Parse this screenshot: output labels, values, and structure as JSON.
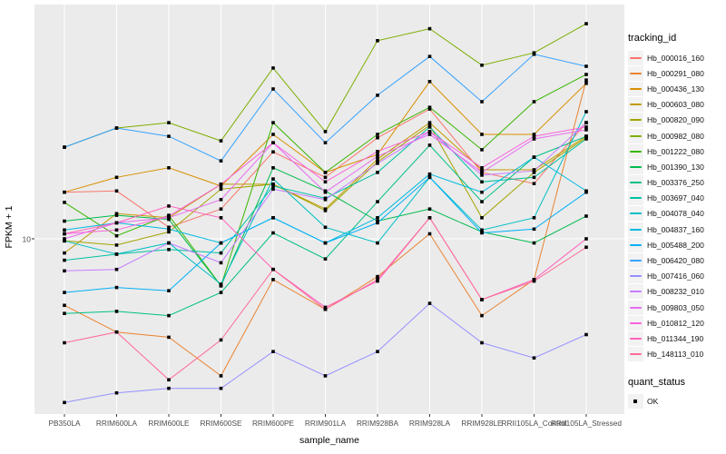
{
  "chart_data": {
    "type": "line",
    "title": "",
    "xlabel": "sample_name",
    "ylabel": "FPKM + 1",
    "y_scale": "log10",
    "y_ticks": [
      10
    ],
    "grid": true,
    "panel_bg": "#EBEBEB",
    "gridline_color": "#FFFFFF",
    "point_color": "#000000",
    "axis_text_color": "#4D4D4D",
    "legend_title": "tracking_id",
    "legend_position": "right",
    "point_legend": {
      "title": "quant_status",
      "label": "OK"
    },
    "categories": [
      "PB350LA",
      "RRIM600LA",
      "RRIM600LE",
      "RRIM600SE",
      "RRIM600PE",
      "RRIM901LA",
      "RRIM928BA",
      "RRIM928LA",
      "RRIM928LE",
      "RRII105LA_Control",
      "RRII105LA_Stressed"
    ],
    "series": [
      {
        "name": "Hb_000016_160",
        "color": "#F8766D",
        "values": [
          15.8,
          16.0,
          11.2,
          13.4,
          23.5,
          18.3,
          27.0,
          35.8,
          19.2,
          17.2,
          31.3
        ]
      },
      {
        "name": "Hb_000291_080",
        "color": "#EA8331",
        "values": [
          5.2,
          4.0,
          3.8,
          2.6,
          6.7,
          5.0,
          6.9,
          10.5,
          4.7,
          6.7,
          47.6
        ]
      },
      {
        "name": "Hb_000436_130",
        "color": "#D89000",
        "values": [
          15.8,
          18.3,
          20.1,
          16.8,
          27.9,
          19.2,
          22.9,
          46.9,
          27.9,
          27.9,
          46.1
        ]
      },
      {
        "name": "Hb_000603_080",
        "color": "#C09B00",
        "values": [
          8.7,
          12.8,
          12.3,
          17.1,
          17.1,
          13.4,
          21.9,
          31.3,
          19.7,
          19.7,
          27.4
        ]
      },
      {
        "name": "Hb_000820_090",
        "color": "#A3A500",
        "values": [
          9.8,
          9.4,
          10.7,
          16.3,
          17.1,
          13.2,
          21.3,
          30.5,
          12.3,
          19.2,
          27.0
        ]
      },
      {
        "name": "Hb_000982_080",
        "color": "#7CAE00",
        "values": [
          24.6,
          29.7,
          31.3,
          26.2,
          53.6,
          28.7,
          70.1,
          78.9,
          55.1,
          62.2,
          82.8
        ]
      },
      {
        "name": "Hb_001222_080",
        "color": "#39B600",
        "values": [
          14.3,
          10.3,
          12.6,
          6.3,
          31.3,
          19.2,
          27.9,
          36.4,
          24.0,
          38.5,
          50.3
        ]
      },
      {
        "name": "Hb_001390_130",
        "color": "#00BB4E",
        "values": [
          11.9,
          12.6,
          12.1,
          6.3,
          20.1,
          16.0,
          11.9,
          13.4,
          10.7,
          9.6,
          12.5
        ]
      },
      {
        "name": "Hb_003376_250",
        "color": "#00C087",
        "values": [
          4.8,
          4.9,
          4.7,
          5.9,
          10.6,
          8.2,
          14.4,
          25.1,
          14.4,
          22.3,
          27.4
        ]
      },
      {
        "name": "Hb_003697_040",
        "color": "#00C1A3",
        "values": [
          8.1,
          8.6,
          9.0,
          8.7,
          16.8,
          14.9,
          19.2,
          30.0,
          17.5,
          18.3,
          26.7
        ]
      },
      {
        "name": "Hb_004078_040",
        "color": "#00BFC4",
        "values": [
          9.8,
          8.6,
          9.6,
          6.4,
          18.0,
          11.2,
          9.6,
          18.3,
          10.9,
          12.3,
          34.9
        ]
      },
      {
        "name": "Hb_004837_160",
        "color": "#00BAE0",
        "values": [
          10.9,
          11.7,
          11.0,
          9.6,
          12.3,
          9.6,
          12.3,
          18.9,
          15.8,
          22.3,
          16.0
        ]
      },
      {
        "name": "Hb_005488_200",
        "color": "#00B0F6",
        "values": [
          5.9,
          6.2,
          6.0,
          9.6,
          12.3,
          9.6,
          11.7,
          18.3,
          10.6,
          11.0,
          15.8
        ]
      },
      {
        "name": "Hb_006420_080",
        "color": "#35A2FF",
        "values": [
          24.6,
          29.7,
          27.4,
          21.5,
          43.6,
          25.7,
          41.0,
          60.0,
          38.5,
          61.3,
          54.5
        ]
      },
      {
        "name": "Hb_007416_060",
        "color": "#9590FF",
        "values": [
          2.0,
          2.2,
          2.3,
          2.3,
          3.3,
          2.6,
          3.3,
          5.3,
          3.6,
          3.1,
          3.9
        ]
      },
      {
        "name": "Hb_008232_010",
        "color": "#C77CFF",
        "values": [
          7.3,
          7.4,
          9.6,
          7.9,
          16.3,
          14.7,
          21.0,
          28.7,
          18.7,
          19.5,
          31.3
        ]
      },
      {
        "name": "Hb_009803_050",
        "color": "#E76BF3",
        "values": [
          10.0,
          11.7,
          12.3,
          14.7,
          25.7,
          15.8,
          22.5,
          27.9,
          19.2,
          26.7,
          29.2
        ]
      },
      {
        "name": "Hb_010812_120",
        "color": "#FA62DB",
        "values": [
          10.5,
          10.9,
          12.5,
          17.1,
          25.7,
          17.5,
          23.6,
          28.7,
          20.1,
          27.4,
          30.0
        ]
      },
      {
        "name": "Hb_011344_190",
        "color": "#FF62BC",
        "values": [
          10.5,
          11.7,
          13.8,
          12.3,
          7.4,
          5.1,
          6.6,
          12.3,
          5.5,
          6.7,
          10.0
        ]
      },
      {
        "name": "Hb_148113_010",
        "color": "#FF6A98",
        "values": [
          3.6,
          4.0,
          2.5,
          3.7,
          7.4,
          5.0,
          6.7,
          12.3,
          5.5,
          6.6,
          9.2
        ]
      }
    ]
  }
}
